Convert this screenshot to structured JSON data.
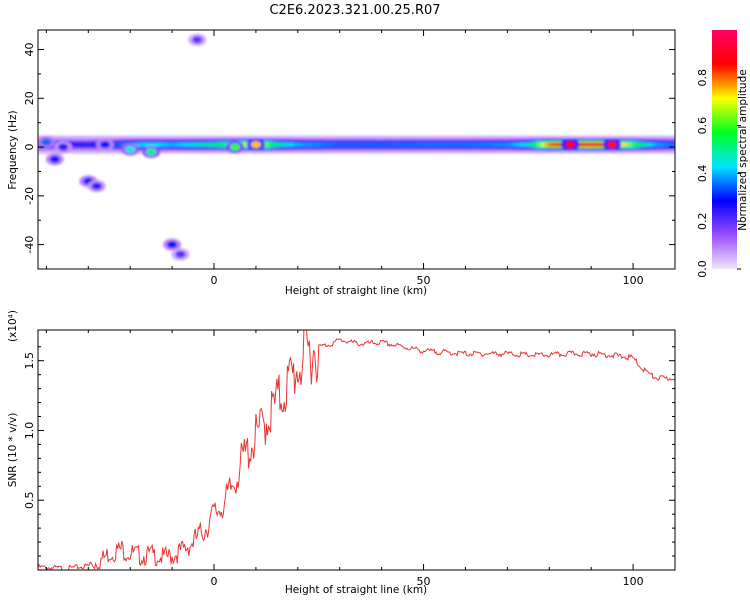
{
  "title": "C2E6.2023.321.00.25.R07",
  "chart_data": [
    {
      "type": "heatmap",
      "xlabel": "Height of straight line (km)",
      "ylabel": "Frequency (Hz)",
      "xlim": [
        -42,
        110
      ],
      "ylim": [
        -50,
        48
      ],
      "xticks": [
        0,
        50,
        100
      ],
      "yticks": [
        -40,
        -20,
        0,
        20,
        40
      ],
      "grid": false,
      "colorbar": {
        "label": "Normalized spectral amplitude",
        "range": [
          0,
          1
        ],
        "ticks": [
          0.0,
          0.2,
          0.4,
          0.6,
          0.8
        ],
        "colormap": [
          "#f0e6fa",
          "#9a4cff",
          "#0000ff",
          "#00e5ff",
          "#00ff20",
          "#ffff00",
          "#ff0000",
          "#ff0066"
        ]
      },
      "blobs": [
        {
          "x": -40,
          "y": 2,
          "amp": 0.35
        },
        {
          "x": -38,
          "y": -5,
          "amp": 0.3
        },
        {
          "x": -36,
          "y": 0,
          "amp": 0.25
        },
        {
          "x": -30,
          "y": -14,
          "amp": 0.3
        },
        {
          "x": -28,
          "y": -16,
          "amp": 0.25
        },
        {
          "x": -26,
          "y": 1,
          "amp": 0.3
        },
        {
          "x": -20,
          "y": -1,
          "amp": 0.45
        },
        {
          "x": -15,
          "y": -2,
          "amp": 0.5
        },
        {
          "x": -10,
          "y": -40,
          "amp": 0.3
        },
        {
          "x": -8,
          "y": -44,
          "amp": 0.2
        },
        {
          "x": -4,
          "y": 44,
          "amp": 0.2
        },
        {
          "x": 5,
          "y": 0,
          "amp": 0.6
        },
        {
          "x": 10,
          "y": 1,
          "amp": 0.75
        },
        {
          "x": 85,
          "y": 1,
          "amp": 0.9
        },
        {
          "x": 95,
          "y": 1,
          "amp": 0.85
        }
      ],
      "ridge": {
        "frequency": 1,
        "x": [
          -42,
          -30,
          -25,
          -20,
          -15,
          -10,
          -5,
          0,
          5,
          10,
          15,
          20,
          30,
          40,
          50,
          60,
          70,
          75,
          80,
          85,
          90,
          95,
          100,
          105,
          110
        ],
        "amplitude": [
          0.3,
          0.25,
          0.3,
          0.4,
          0.45,
          0.4,
          0.45,
          0.5,
          0.6,
          0.75,
          0.5,
          0.4,
          0.35,
          0.35,
          0.36,
          0.36,
          0.38,
          0.45,
          0.8,
          0.9,
          0.9,
          0.85,
          0.6,
          0.4,
          0.35
        ]
      }
    },
    {
      "type": "line",
      "xlabel": "Height of straight line (km)",
      "ylabel": "SNR (10 * v/v)",
      "y_multiplier": "(x10⁴)",
      "xlim": [
        -42,
        110
      ],
      "ylim": [
        0,
        1.72
      ],
      "xticks": [
        0,
        50,
        100
      ],
      "yticks": [
        0.5,
        1.0,
        1.5
      ],
      "yticklabels": [
        "0.5",
        "1.0",
        "1.5"
      ],
      "grid": false,
      "series": [
        {
          "color": "#ee3333",
          "x": [
            -42,
            -35,
            -30,
            -27,
            -25,
            -22,
            -20,
            -17,
            -15,
            -12,
            -10,
            -7,
            -5,
            -2,
            0,
            3,
            5,
            7,
            10,
            12,
            15,
            17,
            18,
            20,
            22,
            25,
            28,
            30,
            33,
            35,
            40,
            45,
            50,
            55,
            60,
            65,
            70,
            75,
            80,
            85,
            90,
            95,
            100,
            102,
            105,
            108,
            110
          ],
          "y": [
            0.02,
            0.01,
            0.03,
            0.07,
            0.12,
            0.15,
            0.12,
            0.1,
            0.11,
            0.09,
            0.1,
            0.15,
            0.2,
            0.3,
            0.4,
            0.5,
            0.65,
            0.8,
            0.95,
            1.05,
            1.2,
            1.3,
            1.35,
            1.45,
            1.55,
            1.6,
            1.62,
            1.65,
            1.63,
            1.62,
            1.63,
            1.6,
            1.57,
            1.56,
            1.55,
            1.55,
            1.55,
            1.54,
            1.54,
            1.55,
            1.55,
            1.54,
            1.52,
            1.45,
            1.38,
            1.37,
            1.38
          ]
        }
      ]
    }
  ]
}
